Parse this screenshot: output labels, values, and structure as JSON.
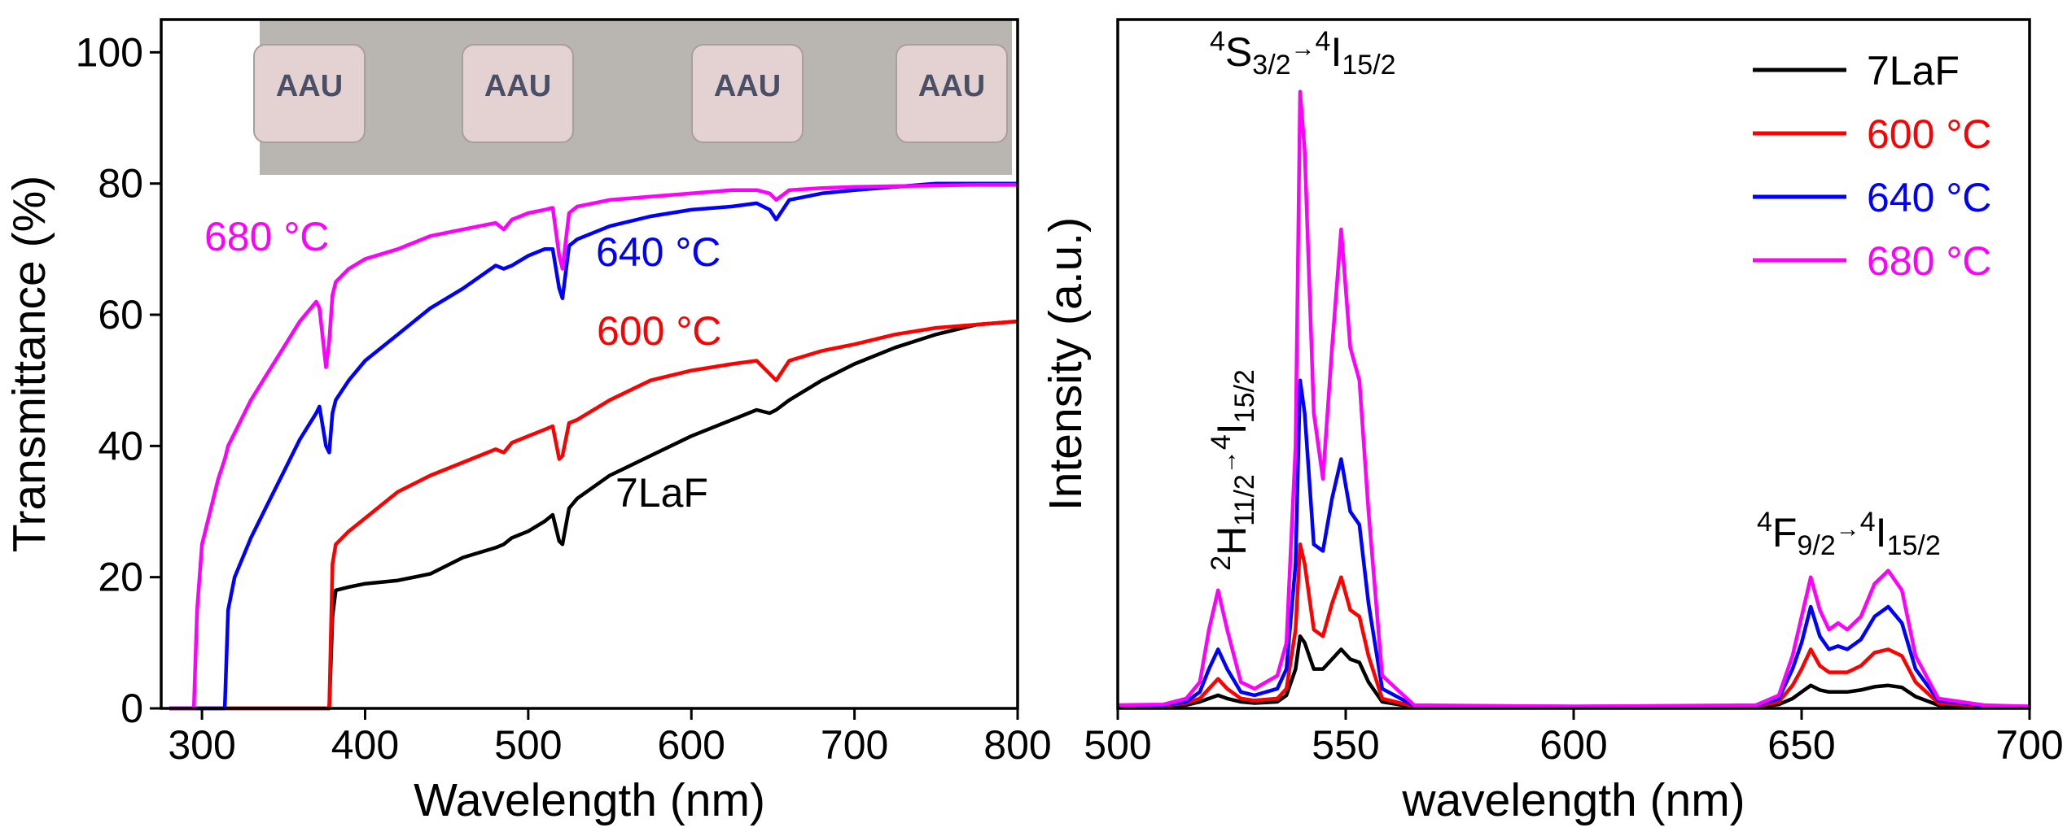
{
  "chart_data": [
    {
      "type": "line",
      "xlabel": "Wavelength (nm)",
      "ylabel": "Transmittance (%)",
      "xlim": [
        275,
        800
      ],
      "ylim": [
        0,
        105
      ],
      "xticks": [
        300,
        400,
        500,
        600,
        700,
        800
      ],
      "yticks": [
        0,
        20,
        40,
        60,
        80,
        100
      ],
      "x": [
        280,
        290,
        295,
        297,
        300,
        310,
        314,
        316,
        320,
        330,
        340,
        350,
        360,
        370,
        372,
        376,
        378,
        380,
        382,
        390,
        400,
        420,
        440,
        460,
        480,
        485,
        490,
        500,
        510,
        515,
        519,
        521,
        525,
        530,
        550,
        575,
        600,
        625,
        640,
        648,
        652,
        660,
        680,
        700,
        725,
        750,
        775,
        800
      ],
      "series": [
        {
          "name": "7LaF",
          "color": "#000000",
          "values": [
            0,
            0,
            0,
            0,
            0,
            0,
            0,
            0,
            0,
            0,
            0,
            0,
            0,
            0,
            0,
            0,
            0,
            14,
            18,
            18.5,
            19,
            19.5,
            20.5,
            23,
            24.5,
            25,
            26,
            27,
            28.5,
            29.5,
            25.5,
            25,
            30.5,
            32,
            35.5,
            38.5,
            41.5,
            44,
            45.5,
            45,
            45.5,
            47,
            50,
            52.5,
            55,
            57,
            58.5,
            59
          ]
        },
        {
          "name": "600 °C",
          "color": "#ff0000",
          "values": [
            0,
            0,
            0,
            0,
            0,
            0,
            0,
            0,
            0,
            0,
            0,
            0,
            0,
            0,
            0,
            0,
            0,
            22,
            25,
            27,
            29,
            33,
            35.5,
            37.5,
            39.5,
            39,
            40.5,
            41.5,
            42.5,
            43,
            38,
            38.5,
            43.5,
            44,
            47,
            50,
            51.5,
            52.5,
            53,
            51,
            50,
            53,
            54.5,
            55.5,
            57,
            58,
            58.5,
            59
          ]
        },
        {
          "name": "640 °C",
          "color": "#0000ff",
          "values": [
            0,
            0,
            0,
            0,
            0,
            0,
            0,
            15,
            20,
            26,
            31,
            36,
            41,
            45,
            46,
            40,
            39,
            45,
            47,
            50,
            53,
            57,
            61,
            64,
            67.5,
            67,
            67.5,
            69,
            70,
            70,
            64,
            62.5,
            70.5,
            71.5,
            73.5,
            75,
            76,
            76.5,
            77,
            76,
            74.5,
            77.5,
            78.5,
            79,
            79.5,
            80,
            80,
            80
          ]
        },
        {
          "name": "680 °C",
          "color": "#ff00ff",
          "values": [
            0,
            0,
            0,
            15,
            25,
            35,
            38,
            40,
            42,
            47,
            51,
            55,
            59,
            62,
            61,
            52,
            56,
            63,
            65,
            67,
            68.5,
            70,
            72,
            73,
            74,
            73,
            74.5,
            75.5,
            76,
            76.3,
            69,
            67,
            75.5,
            76.5,
            77.5,
            78,
            78.5,
            79,
            79,
            78.5,
            77.5,
            79,
            79.3,
            79.5,
            79.6,
            79.7,
            79.8,
            79.8
          ]
        }
      ],
      "annotations": [
        {
          "color": "#ff00ff",
          "parts": [
            {
              "text": "680 °C"
            }
          ]
        },
        {
          "color": "#0000ff",
          "parts": [
            {
              "text": "640 °C"
            }
          ]
        },
        {
          "color": "#ff0000",
          "parts": [
            {
              "text": "600 °C"
            }
          ]
        },
        {
          "color": "#000000",
          "parts": [
            {
              "text": "7LaF"
            }
          ]
        }
      ],
      "inset_labels": [
        "AAU",
        "AAU",
        "AAU",
        "AAU"
      ]
    },
    {
      "type": "line",
      "xlabel": "wavelength (nm)",
      "ylabel": "Intensity (a.u.)",
      "xlim": [
        500,
        700
      ],
      "ylim": [
        0,
        105
      ],
      "xticks": [
        500,
        550,
        600,
        650,
        700
      ],
      "legend": "upper right",
      "x": [
        500,
        510,
        515,
        518,
        520,
        522,
        524,
        527,
        530,
        535,
        537,
        539,
        540,
        541,
        543,
        545,
        547,
        549,
        551,
        553,
        555,
        558,
        565,
        600,
        640,
        645,
        648,
        650,
        652,
        654,
        656,
        658,
        660,
        663,
        666,
        669,
        672,
        675,
        680,
        690,
        700
      ],
      "series": [
        {
          "name": "7LaF",
          "color": "#000000",
          "values": [
            0.2,
            0.3,
            0.5,
            1,
            1.5,
            2,
            1.5,
            1,
            0.8,
            1,
            2,
            6,
            11,
            10,
            6,
            6,
            7.5,
            9,
            7.5,
            7,
            4,
            1,
            0.2,
            0.2,
            0.2,
            0.6,
            1.5,
            2.5,
            3.5,
            2.8,
            2.5,
            2.5,
            2.5,
            2.8,
            3.3,
            3.5,
            3.2,
            1.8,
            0.5,
            0.2,
            0.2
          ]
        },
        {
          "name": "600 °C",
          "color": "#ff0000",
          "values": [
            0.3,
            0.4,
            0.8,
            1.5,
            3,
            4.5,
            3,
            1.5,
            1.2,
            1.5,
            3,
            12,
            25,
            22,
            12,
            11,
            16,
            20,
            15,
            14,
            8,
            1.5,
            0.3,
            0.2,
            0.3,
            1,
            3.5,
            6,
            9,
            6.5,
            5.5,
            5.5,
            5.5,
            6.5,
            8.5,
            9,
            8,
            4,
            0.8,
            0.3,
            0.2
          ]
        },
        {
          "name": "640 °C",
          "color": "#0000ff",
          "values": [
            0.4,
            0.5,
            1,
            2.5,
            6,
            9,
            6,
            2.5,
            2,
            3,
            6,
            22,
            50,
            45,
            25,
            24,
            32,
            38,
            30,
            28,
            16,
            3,
            0.4,
            0.3,
            0.4,
            1.5,
            6,
            10,
            15.5,
            11,
            9,
            9.5,
            9,
            10.5,
            14,
            15.5,
            13,
            6,
            1.2,
            0.4,
            0.3
          ]
        },
        {
          "name": "680 °C",
          "color": "#ff00ff",
          "values": [
            0.5,
            0.6,
            1.5,
            4,
            12,
            18,
            12,
            4,
            3,
            5,
            10,
            40,
            94,
            85,
            45,
            35,
            55,
            73,
            55,
            50,
            30,
            5,
            0.5,
            0.3,
            0.5,
            2,
            8,
            14,
            20,
            15,
            12,
            13,
            12,
            14,
            19,
            21,
            18,
            8,
            1.5,
            0.5,
            0.3
          ]
        }
      ],
      "annotations": [
        {
          "parts": [
            {
              "text": "4",
              "style": "sup"
            },
            {
              "text": "S"
            },
            {
              "text": "3/2",
              "style": "sub"
            },
            {
              "text": "→",
              "style": "arrow"
            },
            {
              "text": "4",
              "style": "sup"
            },
            {
              "text": "I"
            },
            {
              "text": "15/2",
              "style": "sub"
            }
          ]
        },
        {
          "parts": [
            {
              "text": "2",
              "style": "sup"
            },
            {
              "text": "H"
            },
            {
              "text": "11/2",
              "style": "sub"
            },
            {
              "text": "→",
              "style": "arrow"
            },
            {
              "text": "4",
              "style": "sup"
            },
            {
              "text": "I"
            },
            {
              "text": "15/2",
              "style": "sub"
            }
          ]
        },
        {
          "parts": [
            {
              "text": "4",
              "style": "sup"
            },
            {
              "text": "F"
            },
            {
              "text": "9/2",
              "style": "sub"
            },
            {
              "text": "→",
              "style": "arrow"
            },
            {
              "text": "4",
              "style": "sup"
            },
            {
              "text": "I"
            },
            {
              "text": "15/2",
              "style": "sub"
            }
          ]
        }
      ]
    }
  ]
}
